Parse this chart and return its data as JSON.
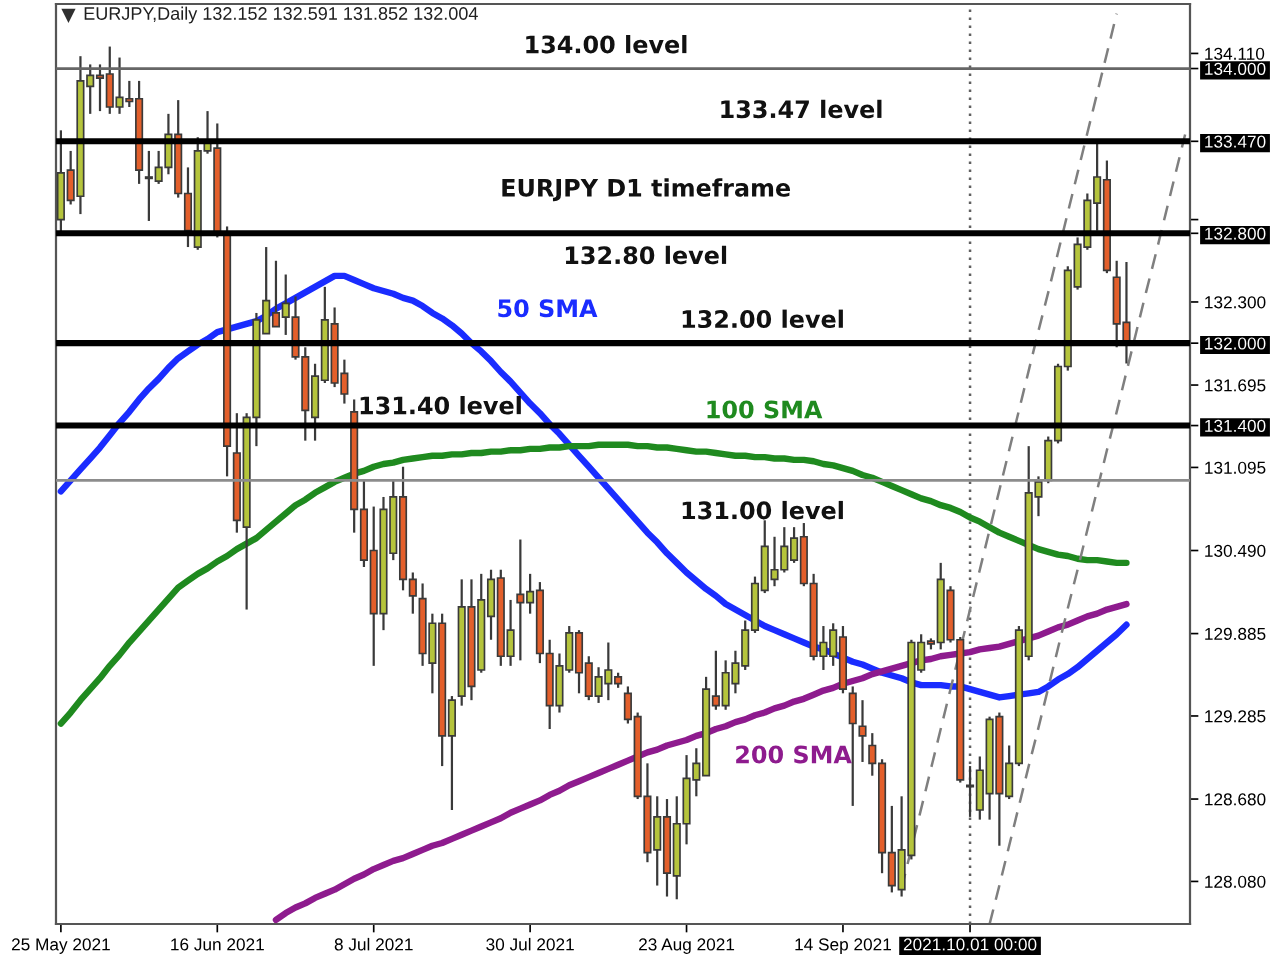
{
  "chart_data": {
    "type": "candlestick",
    "title": "EURJPY,Daily 132.152 132.591 131.852 132.004",
    "subtitle": "EURJPY D1 timeframe",
    "categories": [
      "25 May 2021",
      null,
      null,
      null,
      null,
      null,
      null,
      null,
      null,
      null,
      null,
      null,
      null,
      null,
      null,
      null,
      "16 Jun 2021",
      null,
      null,
      null,
      null,
      null,
      null,
      null,
      null,
      null,
      null,
      null,
      null,
      null,
      null,
      null,
      "8 Jul 2021",
      null,
      null,
      null,
      null,
      null,
      null,
      null,
      null,
      null,
      null,
      null,
      null,
      null,
      null,
      null,
      "30 Jul 2021",
      null,
      null,
      null,
      null,
      null,
      null,
      null,
      null,
      null,
      null,
      null,
      null,
      null,
      null,
      null,
      "23 Aug 2021",
      null,
      null,
      null,
      null,
      null,
      null,
      null,
      null,
      null,
      null,
      null,
      null,
      null,
      null,
      null,
      "14 Sep 2021",
      null,
      null,
      null,
      null,
      null,
      null,
      null,
      null,
      null,
      null,
      null,
      null,
      "2021.10.01 00:00",
      null,
      null,
      null,
      null,
      null,
      null,
      null,
      null,
      null,
      null,
      null,
      null,
      null,
      null,
      null,
      null,
      null,
      null,
      null,
      null,
      null,
      null
    ],
    "ohlc": [
      [
        132.9,
        133.55,
        132.8,
        133.24
      ],
      [
        133.26,
        133.4,
        133.01,
        133.04
      ],
      [
        133.07,
        134.09,
        132.94,
        133.91
      ],
      [
        133.87,
        134.03,
        133.67,
        133.95
      ],
      [
        133.95,
        134.03,
        133.69,
        133.93
      ],
      [
        133.96,
        134.16,
        133.67,
        133.72
      ],
      [
        133.72,
        134.08,
        133.67,
        133.79
      ],
      [
        133.78,
        133.91,
        133.72,
        133.76
      ],
      [
        133.78,
        133.91,
        133.16,
        133.26
      ],
      [
        133.21,
        133.4,
        132.89,
        133.2
      ],
      [
        133.18,
        133.4,
        133.16,
        133.28
      ],
      [
        133.28,
        133.67,
        133.23,
        133.52
      ],
      [
        133.52,
        133.77,
        133.06,
        133.09
      ],
      [
        133.09,
        133.28,
        132.7,
        132.82
      ],
      [
        132.7,
        133.5,
        132.68,
        133.4
      ],
      [
        133.4,
        133.69,
        133.38,
        133.48
      ],
      [
        133.42,
        133.6,
        132.77,
        132.8
      ],
      [
        132.8,
        132.85,
        131.03,
        131.25
      ],
      [
        131.2,
        131.49,
        130.62,
        130.71
      ],
      [
        130.66,
        131.49,
        130.06,
        131.46
      ],
      [
        131.46,
        132.22,
        131.25,
        132.17
      ],
      [
        132.07,
        132.7,
        132.07,
        132.31
      ],
      [
        132.22,
        132.6,
        132.12,
        132.12
      ],
      [
        132.19,
        132.5,
        132.06,
        132.29
      ],
      [
        132.19,
        132.34,
        131.88,
        131.9
      ],
      [
        131.9,
        131.97,
        131.29,
        131.51
      ],
      [
        131.46,
        131.85,
        131.29,
        131.76
      ],
      [
        131.73,
        132.41,
        131.71,
        132.17
      ],
      [
        132.14,
        132.26,
        131.68,
        131.71
      ],
      [
        131.78,
        131.88,
        131.56,
        131.63
      ],
      [
        131.5,
        131.59,
        130.62,
        130.79
      ],
      [
        130.79,
        131.0,
        130.37,
        130.42
      ],
      [
        130.49,
        130.81,
        129.65,
        130.03
      ],
      [
        130.03,
        130.88,
        129.91,
        130.79
      ],
      [
        130.47,
        131.0,
        130.42,
        130.88
      ],
      [
        130.88,
        131.1,
        130.2,
        130.28
      ],
      [
        130.28,
        130.33,
        130.03,
        130.16
      ],
      [
        130.14,
        130.25,
        129.65,
        129.74
      ],
      [
        129.67,
        130.03,
        129.45,
        129.96
      ],
      [
        129.96,
        130.03,
        128.92,
        129.14
      ],
      [
        129.14,
        129.43,
        128.6,
        129.4
      ],
      [
        129.43,
        130.28,
        129.36,
        130.08
      ],
      [
        130.08,
        130.28,
        129.4,
        129.5
      ],
      [
        129.62,
        130.32,
        129.6,
        130.13
      ],
      [
        130.01,
        130.35,
        129.84,
        130.28
      ],
      [
        130.29,
        130.35,
        129.65,
        129.72
      ],
      [
        129.72,
        130.13,
        129.65,
        129.91
      ],
      [
        130.17,
        130.57,
        129.69,
        130.11
      ],
      [
        130.11,
        130.32,
        130.03,
        130.19
      ],
      [
        130.2,
        130.26,
        129.67,
        129.74
      ],
      [
        129.74,
        129.84,
        129.19,
        129.36
      ],
      [
        129.36,
        129.74,
        129.31,
        129.65
      ],
      [
        129.62,
        129.94,
        129.6,
        129.89
      ],
      [
        129.89,
        129.91,
        129.45,
        129.6
      ],
      [
        129.67,
        129.72,
        129.4,
        129.43
      ],
      [
        129.43,
        129.64,
        129.38,
        129.57
      ],
      [
        129.52,
        129.82,
        129.4,
        129.62
      ],
      [
        129.57,
        129.6,
        129.49,
        129.52
      ],
      [
        129.45,
        129.5,
        129.23,
        129.26
      ],
      [
        129.28,
        129.31,
        128.68,
        128.7
      ],
      [
        128.7,
        128.94,
        128.22,
        128.29
      ],
      [
        128.31,
        128.7,
        128.05,
        128.55
      ],
      [
        128.55,
        128.68,
        127.97,
        128.14
      ],
      [
        128.12,
        128.7,
        127.95,
        128.5
      ],
      [
        128.5,
        129.0,
        128.35,
        128.83
      ],
      [
        128.82,
        129.05,
        128.7,
        128.94
      ],
      [
        128.85,
        129.57,
        128.85,
        129.48
      ],
      [
        129.43,
        129.76,
        129.33,
        129.36
      ],
      [
        129.36,
        129.69,
        129.33,
        129.6
      ],
      [
        129.52,
        129.76,
        129.45,
        129.67
      ],
      [
        129.65,
        129.98,
        129.62,
        129.91
      ],
      [
        129.91,
        130.3,
        129.89,
        130.25
      ],
      [
        130.2,
        130.71,
        130.18,
        130.52
      ],
      [
        130.28,
        130.59,
        130.23,
        130.35
      ],
      [
        130.35,
        130.66,
        130.33,
        130.52
      ],
      [
        130.42,
        130.66,
        130.4,
        130.58
      ],
      [
        130.59,
        130.69,
        130.23,
        130.25
      ],
      [
        130.25,
        130.32,
        129.69,
        129.72
      ],
      [
        129.72,
        129.94,
        129.62,
        129.82
      ],
      [
        129.72,
        129.96,
        129.65,
        129.91
      ],
      [
        129.86,
        129.94,
        129.45,
        129.48
      ],
      [
        129.45,
        129.5,
        128.63,
        129.23
      ],
      [
        129.21,
        129.4,
        128.95,
        129.14
      ],
      [
        129.07,
        129.16,
        128.85,
        128.94
      ],
      [
        128.94,
        128.97,
        128.14,
        128.29
      ],
      [
        128.29,
        128.63,
        128.0,
        128.05
      ],
      [
        128.02,
        128.7,
        127.97,
        128.31
      ],
      [
        128.27,
        129.84,
        128.24,
        129.82
      ],
      [
        129.62,
        129.88,
        129.6,
        129.82
      ],
      [
        129.83,
        129.85,
        129.77,
        129.81
      ],
      [
        129.82,
        130.4,
        129.77,
        130.28
      ],
      [
        130.2,
        130.23,
        129.82,
        129.84
      ],
      [
        129.84,
        129.86,
        128.8,
        128.82
      ],
      [
        128.78,
        128.92,
        128.55,
        128.77
      ],
      [
        128.6,
        128.99,
        128.53,
        128.89
      ],
      [
        128.72,
        129.28,
        128.53,
        129.26
      ],
      [
        129.28,
        129.31,
        128.34,
        128.72
      ],
      [
        128.7,
        129.07,
        128.68,
        128.94
      ],
      [
        128.94,
        129.94,
        128.92,
        129.91
      ],
      [
        129.72,
        131.25,
        129.69,
        130.91
      ],
      [
        130.88,
        131.03,
        130.74,
        130.99
      ],
      [
        131.0,
        131.32,
        130.98,
        131.29
      ],
      [
        131.29,
        131.85,
        131.27,
        131.83
      ],
      [
        131.83,
        132.56,
        131.8,
        132.53
      ],
      [
        132.41,
        132.77,
        132.39,
        132.72
      ],
      [
        132.7,
        133.09,
        132.68,
        133.04
      ],
      [
        133.02,
        133.47,
        132.82,
        133.21
      ],
      [
        133.19,
        133.33,
        132.51,
        132.53
      ],
      [
        132.48,
        132.6,
        131.97,
        132.14
      ],
      [
        132.152,
        132.591,
        131.852,
        132.004
      ],
      null,
      null,
      null,
      null,
      null,
      null
    ],
    "colors": [
      "#b5c43c",
      "#e35f2b",
      "#b5c43c",
      "#b5c43c",
      "#e35f2b",
      "#e35f2b",
      "#b5c43c",
      "#e35f2b",
      "#e35f2b",
      "#e35f2b",
      "#b5c43c",
      "#b5c43c",
      "#e35f2b",
      "#e35f2b",
      "#b5c43c",
      "#b5c43c",
      "#e35f2b",
      "#e35f2b",
      "#e35f2b",
      "#b5c43c",
      "#b5c43c",
      "#b5c43c",
      "#e35f2b",
      "#b5c43c",
      "#e35f2b",
      "#e35f2b",
      "#b5c43c",
      "#b5c43c",
      "#e35f2b",
      "#e35f2b",
      "#e35f2b",
      "#e35f2b",
      "#e35f2b",
      "#b5c43c",
      "#b5c43c",
      "#e35f2b",
      "#e35f2b",
      "#e35f2b",
      "#b5c43c",
      "#e35f2b",
      "#b5c43c",
      "#b5c43c",
      "#e35f2b",
      "#b5c43c",
      "#b5c43c",
      "#e35f2b",
      "#b5c43c",
      "#e35f2b",
      "#b5c43c",
      "#e35f2b",
      "#e35f2b",
      "#b5c43c",
      "#b5c43c",
      "#e35f2b",
      "#e35f2b",
      "#b5c43c",
      "#b5c43c",
      "#e35f2b",
      "#e35f2b",
      "#e35f2b",
      "#e35f2b",
      "#b5c43c",
      "#e35f2b",
      "#b5c43c",
      "#b5c43c",
      "#b5c43c",
      "#b5c43c",
      "#e35f2b",
      "#b5c43c",
      "#b5c43c",
      "#b5c43c",
      "#b5c43c",
      "#b5c43c",
      "#b5c43c",
      "#b5c43c",
      "#b5c43c",
      "#e35f2b",
      "#e35f2b",
      "#b5c43c",
      "#b5c43c",
      "#e35f2b",
      "#e35f2b",
      "#e35f2b",
      "#e35f2b",
      "#e35f2b",
      "#e35f2b",
      "#b5c43c",
      "#b5c43c",
      "#b5c43c",
      "#e35f2b",
      "#b5c43c",
      "#e35f2b",
      "#e35f2b",
      "#e35f2b",
      "#b5c43c",
      "#b5c43c",
      "#e35f2b",
      "#b5c43c",
      "#b5c43c",
      "#b5c43c",
      "#b5c43c",
      "#b5c43c",
      "#b5c43c",
      "#b5c43c",
      "#b5c43c",
      "#b5c43c",
      "#b5c43c",
      "#e35f2b",
      "#e35f2b",
      "#e35f2b",
      null,
      null,
      null,
      null,
      null,
      null
    ],
    "series": [
      {
        "type": "line",
        "name": "50 SMA",
        "color": "#1a2cff",
        "values": [
          130.92,
          131.0,
          131.08,
          131.16,
          131.24,
          131.33,
          131.42,
          131.5,
          131.59,
          131.67,
          131.74,
          131.82,
          131.89,
          131.94,
          131.99,
          132.03,
          132.08,
          132.1,
          132.12,
          132.14,
          132.16,
          132.2,
          132.25,
          132.29,
          132.33,
          132.37,
          132.41,
          132.45,
          132.49,
          132.49,
          132.46,
          132.43,
          132.4,
          132.38,
          132.36,
          132.33,
          132.31,
          132.27,
          132.22,
          132.18,
          132.13,
          132.07,
          132.0,
          131.94,
          131.87,
          131.79,
          131.72,
          131.64,
          131.56,
          131.49,
          131.41,
          131.34,
          131.26,
          131.18,
          131.1,
          131.02,
          130.94,
          130.86,
          130.78,
          130.7,
          130.62,
          130.55,
          130.47,
          130.4,
          130.33,
          130.27,
          130.21,
          130.16,
          130.1,
          130.06,
          130.02,
          129.98,
          129.94,
          129.91,
          129.88,
          129.85,
          129.82,
          129.79,
          129.77,
          129.74,
          129.71,
          129.68,
          129.66,
          129.63,
          129.6,
          129.58,
          129.56,
          129.53,
          129.51,
          129.51,
          129.51,
          129.5,
          129.5,
          129.48,
          129.46,
          129.44,
          129.42,
          129.43,
          129.44,
          129.45,
          129.46,
          129.5,
          129.55,
          129.59,
          129.64,
          129.7,
          129.76,
          129.82,
          129.88,
          129.95,
          null,
          null,
          null,
          null,
          null,
          null
        ]
      },
      {
        "type": "line",
        "name": "100 SMA",
        "color": "#1f8a1f",
        "values": [
          129.23,
          129.31,
          129.4,
          129.48,
          129.56,
          129.65,
          129.73,
          129.82,
          129.9,
          129.98,
          130.06,
          130.14,
          130.22,
          130.27,
          130.32,
          130.36,
          130.41,
          130.45,
          130.5,
          130.54,
          130.58,
          130.64,
          130.7,
          130.76,
          130.82,
          130.86,
          130.91,
          130.95,
          130.99,
          131.02,
          131.05,
          131.07,
          131.1,
          131.12,
          131.13,
          131.15,
          131.16,
          131.17,
          131.18,
          131.18,
          131.19,
          131.19,
          131.2,
          131.2,
          131.21,
          131.21,
          131.22,
          131.22,
          131.23,
          131.23,
          131.24,
          131.24,
          131.25,
          131.25,
          131.25,
          131.26,
          131.26,
          131.26,
          131.26,
          131.25,
          131.25,
          131.24,
          131.24,
          131.23,
          131.22,
          131.21,
          131.21,
          131.2,
          131.19,
          131.18,
          131.18,
          131.17,
          131.17,
          131.16,
          131.16,
          131.15,
          131.15,
          131.14,
          131.12,
          131.11,
          131.09,
          131.07,
          131.04,
          131.02,
          130.99,
          130.96,
          130.93,
          130.9,
          130.87,
          130.85,
          130.82,
          130.8,
          130.77,
          130.73,
          130.7,
          130.66,
          130.62,
          130.59,
          130.56,
          130.53,
          130.5,
          130.48,
          130.46,
          130.45,
          130.43,
          130.42,
          130.42,
          130.41,
          130.4,
          130.4,
          null,
          null,
          null,
          null,
          null,
          null
        ]
      },
      {
        "type": "line",
        "name": "200 SMA",
        "color": "#8e1b8e",
        "values": [
          null,
          null,
          null,
          null,
          null,
          null,
          null,
          null,
          null,
          null,
          null,
          null,
          null,
          null,
          null,
          null,
          null,
          null,
          null,
          null,
          null,
          null,
          127.8,
          127.85,
          127.89,
          127.92,
          127.96,
          127.99,
          128.02,
          128.06,
          128.1,
          128.13,
          128.17,
          128.2,
          128.23,
          128.25,
          128.28,
          128.31,
          128.34,
          128.36,
          128.39,
          128.42,
          128.45,
          128.48,
          128.51,
          128.54,
          128.58,
          128.61,
          128.64,
          128.67,
          128.71,
          128.74,
          128.78,
          128.81,
          128.84,
          128.87,
          128.9,
          128.93,
          128.96,
          128.99,
          129.02,
          129.04,
          129.07,
          129.09,
          129.11,
          129.14,
          129.16,
          129.19,
          129.21,
          129.24,
          129.26,
          129.29,
          129.31,
          129.34,
          129.36,
          129.39,
          129.41,
          129.44,
          129.47,
          129.49,
          129.52,
          129.54,
          129.56,
          129.59,
          129.61,
          129.63,
          129.65,
          129.67,
          129.69,
          129.7,
          129.72,
          129.73,
          129.74,
          129.75,
          129.77,
          129.78,
          129.79,
          129.81,
          129.83,
          129.85,
          129.87,
          129.9,
          129.93,
          129.95,
          129.98,
          130.01,
          130.03,
          130.06,
          130.08,
          130.1,
          null,
          null,
          null,
          null,
          null,
          null
        ]
      },
      {
        "type": "line",
        "color": "#7f7f7f",
        "line_style": "dashed",
        "values": [
          null,
          null,
          null,
          null,
          null,
          null,
          null,
          null,
          null,
          null,
          null,
          null,
          null,
          null,
          null,
          null,
          null,
          null,
          null,
          null,
          null,
          null,
          null,
          null,
          null,
          null,
          null,
          null,
          null,
          null,
          null,
          null,
          null,
          null,
          null,
          null,
          null,
          null,
          null,
          null,
          null,
          null,
          null,
          null,
          null,
          null,
          null,
          null,
          null,
          null,
          null,
          null,
          null,
          null,
          null,
          null,
          null,
          null,
          null,
          null,
          null,
          null,
          null,
          null,
          null,
          null,
          null,
          null,
          null,
          null,
          null,
          null,
          null,
          null,
          null,
          null,
          null,
          null,
          null,
          null,
          null,
          null,
          null,
          null,
          null,
          null,
          128.03,
          128.32,
          128.61,
          128.9,
          129.19,
          129.48,
          129.77,
          130.06,
          130.35,
          130.64,
          130.93,
          131.22,
          131.51,
          131.8,
          132.09,
          132.37,
          132.66,
          132.95,
          133.24,
          133.53,
          133.82,
          134.11,
          134.4,
          null,
          null,
          null,
          null,
          null,
          null,
          null
        ]
      },
      {
        "type": "line",
        "color": "#7f7f7f",
        "line_style": "dashed",
        "values": [
          null,
          null,
          null,
          null,
          null,
          null,
          null,
          null,
          null,
          null,
          null,
          null,
          null,
          null,
          null,
          null,
          null,
          null,
          null,
          null,
          null,
          null,
          null,
          null,
          null,
          null,
          null,
          null,
          null,
          null,
          null,
          null,
          null,
          null,
          null,
          null,
          null,
          null,
          null,
          null,
          null,
          null,
          null,
          null,
          null,
          null,
          null,
          null,
          null,
          null,
          null,
          null,
          null,
          null,
          null,
          null,
          null,
          null,
          null,
          null,
          null,
          null,
          null,
          null,
          null,
          null,
          null,
          null,
          null,
          null,
          null,
          null,
          null,
          null,
          null,
          null,
          null,
          null,
          null,
          null,
          null,
          null,
          null,
          null,
          null,
          null,
          null,
          null,
          null,
          null,
          null,
          null,
          null,
          null,
          null,
          127.77,
          128.05,
          128.34,
          128.63,
          128.92,
          129.2,
          129.49,
          129.78,
          130.07,
          130.35,
          130.64,
          130.93,
          131.22,
          131.5,
          131.79,
          132.08,
          132.37,
          132.65,
          132.94,
          133.23,
          133.52
        ]
      }
    ],
    "ref_lines": [
      {
        "axis": "y",
        "value": 134.0,
        "label": "134.00 level",
        "color": "#666666"
      },
      {
        "axis": "y",
        "value": 133.47,
        "label": "133.47 level",
        "color": "#000000"
      },
      {
        "axis": "y",
        "value": 132.8,
        "label": "132.80 level",
        "color": "#000000"
      },
      {
        "axis": "y",
        "value": 132.0,
        "label": "132.00 level",
        "color": "#000000"
      },
      {
        "axis": "y",
        "value": 131.4,
        "label": "131.40 level",
        "color": "#000000"
      },
      {
        "axis": "y",
        "value": 131.0,
        "label": "131.00 level",
        "color": "#8c8c8c"
      },
      {
        "axis": "x",
        "value": "2021.10.01 00:00",
        "color": "#606060",
        "line_style": "dotted"
      }
    ],
    "ylim": [
      127.77,
      134.47
    ],
    "yticks": [
      {
        "value": 134.11,
        "label": "134.110"
      },
      {
        "value": 134.0,
        "label": "134.000"
      },
      {
        "value": 133.47,
        "label": "133.470"
      },
      {
        "value": 132.9,
        "label": null
      },
      {
        "value": 132.8,
        "label": "132.800"
      },
      {
        "value": 132.3,
        "label": "132.300"
      },
      {
        "value": 132.0,
        "label": "132.000"
      },
      {
        "value": 131.695,
        "label": "131.695"
      },
      {
        "value": 131.4,
        "label": "131.400"
      },
      {
        "value": 131.095,
        "label": "131.095"
      },
      {
        "value": 130.49,
        "label": "130.490"
      },
      {
        "value": 129.885,
        "label": "129.885"
      },
      {
        "value": 129.285,
        "label": "129.285"
      },
      {
        "value": 128.68,
        "label": "128.680"
      },
      {
        "value": 128.08,
        "label": "128.080"
      }
    ]
  }
}
